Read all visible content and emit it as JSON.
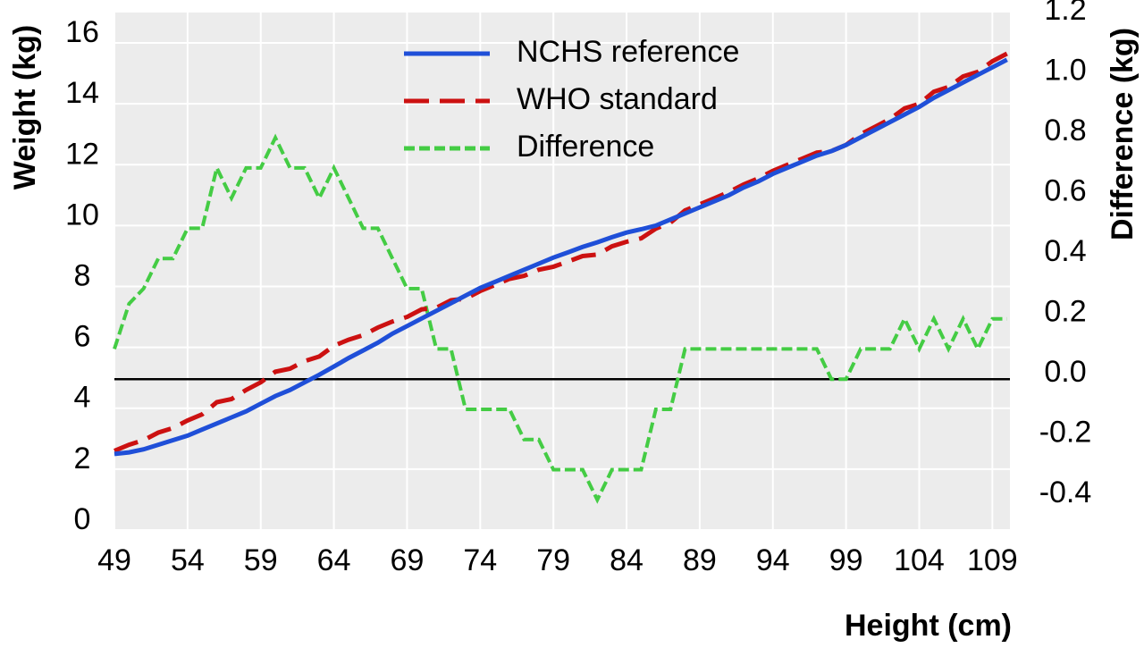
{
  "chart_data": {
    "type": "line",
    "xlabel": "Height (cm)",
    "ylabel": "Weight (kg)",
    "y2label": "Difference (kg)",
    "x": [
      49,
      50,
      51,
      52,
      53,
      54,
      55,
      56,
      57,
      58,
      59,
      60,
      61,
      62,
      63,
      64,
      65,
      66,
      67,
      68,
      69,
      70,
      71,
      72,
      73,
      74,
      75,
      76,
      77,
      78,
      79,
      80,
      81,
      82,
      83,
      84,
      85,
      86,
      87,
      88,
      89,
      90,
      91,
      92,
      93,
      94,
      95,
      96,
      97,
      98,
      99,
      100,
      101,
      102,
      103,
      104,
      105,
      106,
      107,
      108,
      109,
      110
    ],
    "series": [
      {
        "name": "NCHS reference",
        "color": "#1f4fd8",
        "dash": "solid",
        "values": [
          2.5,
          2.55,
          2.65,
          2.8,
          2.95,
          3.1,
          3.3,
          3.5,
          3.7,
          3.9,
          4.15,
          4.4,
          4.6,
          4.85,
          5.1,
          5.37,
          5.65,
          5.9,
          6.15,
          6.45,
          6.7,
          6.95,
          7.2,
          7.45,
          7.7,
          7.95,
          8.15,
          8.35,
          8.55,
          8.75,
          8.95,
          9.12,
          9.3,
          9.45,
          9.62,
          9.77,
          9.88,
          10.0,
          10.2,
          10.4,
          10.6,
          10.8,
          11.0,
          11.25,
          11.45,
          11.7,
          11.9,
          12.1,
          12.3,
          12.45,
          12.65,
          12.9,
          13.15,
          13.4,
          13.65,
          13.9,
          14.2,
          14.45,
          14.7,
          14.95,
          15.2,
          15.45
        ]
      },
      {
        "name": "WHO standard",
        "color": "#cc1111",
        "dash": "long",
        "values": [
          2.6,
          2.8,
          2.95,
          3.2,
          3.35,
          3.6,
          3.8,
          4.2,
          4.3,
          4.6,
          4.85,
          5.2,
          5.3,
          5.55,
          5.7,
          6.05,
          6.25,
          6.4,
          6.65,
          6.85,
          7.0,
          7.25,
          7.3,
          7.55,
          7.6,
          7.85,
          8.05,
          8.25,
          8.35,
          8.55,
          8.65,
          8.82,
          9.0,
          9.05,
          9.32,
          9.47,
          9.58,
          9.9,
          10.1,
          10.5,
          10.7,
          10.9,
          11.1,
          11.35,
          11.55,
          11.8,
          12.0,
          12.2,
          12.4,
          12.45,
          12.65,
          13.0,
          13.25,
          13.5,
          13.85,
          14.0,
          14.4,
          14.55,
          14.9,
          15.05,
          15.4,
          15.65
        ]
      },
      {
        "name": "Difference",
        "color": "#44cc44",
        "dash": "short",
        "axis": "y2",
        "values": [
          0.1,
          0.25,
          0.3,
          0.4,
          0.4,
          0.5,
          0.5,
          0.7,
          0.6,
          0.7,
          0.7,
          0.8,
          0.7,
          0.7,
          0.6,
          0.7,
          0.6,
          0.5,
          0.5,
          0.4,
          0.3,
          0.3,
          0.1,
          0.1,
          -0.1,
          -0.1,
          -0.1,
          -0.1,
          -0.2,
          -0.2,
          -0.3,
          -0.3,
          -0.3,
          -0.4,
          -0.3,
          -0.3,
          -0.3,
          -0.1,
          -0.1,
          0.1,
          0.1,
          0.1,
          0.1,
          0.1,
          0.1,
          0.1,
          0.1,
          0.1,
          0.1,
          0.0,
          0.0,
          0.1,
          0.1,
          0.1,
          0.2,
          0.1,
          0.2,
          0.1,
          0.2,
          0.1,
          0.2,
          0.2
        ]
      }
    ],
    "xlim": [
      49,
      110.2
    ],
    "xticks": [
      49,
      54,
      59,
      64,
      69,
      74,
      79,
      84,
      89,
      94,
      99,
      104,
      109
    ],
    "ylim": [
      0,
      17
    ],
    "yticks": [
      0,
      2,
      4,
      6,
      8,
      10,
      12,
      14,
      16
    ],
    "y2lim": [
      -0.5,
      1.215
    ],
    "y2ticks": [
      -0.4,
      -0.2,
      {
        "value": 0,
        "label": "0.0"
      },
      0.2,
      0.4,
      0.6,
      0.8,
      {
        "value": 1,
        "label": "1.0"
      },
      1.2
    ],
    "grid": true,
    "legend": "top"
  }
}
